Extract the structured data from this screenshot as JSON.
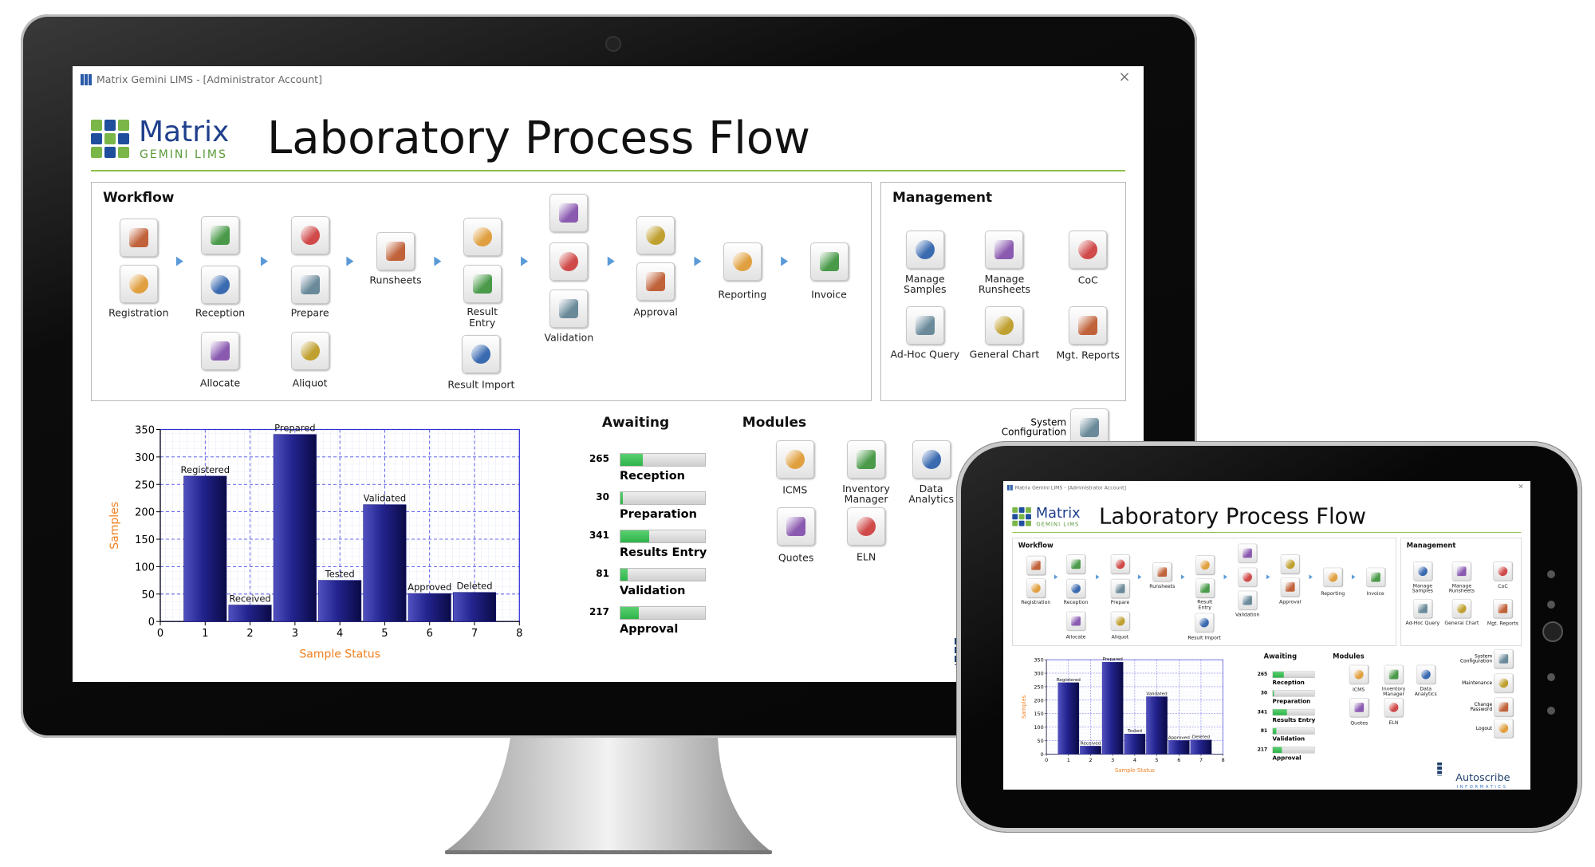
{
  "window": {
    "title": "Matrix Gemini LIMS - [Administrator Account]"
  },
  "logo": {
    "name": "Matrix",
    "subtitle": "GEMINI LIMS"
  },
  "header": {
    "title": "Laboratory Process Flow"
  },
  "workflow": {
    "title": "Workflow",
    "items": [
      "Registration",
      "Reception",
      "Allocate",
      "Prepare",
      "Aliquot",
      "Runsheets",
      "Result Entry",
      "Result Import",
      "Validation",
      "Approval",
      "Reporting",
      "Invoice"
    ]
  },
  "management": {
    "title": "Management",
    "items": [
      "Manage Samples",
      "Manage Runsheets",
      "CoC",
      "Ad-Hoc Query",
      "General Chart",
      "Mgt. Reports"
    ]
  },
  "chart_data": {
    "type": "bar",
    "x": [
      1,
      2,
      3,
      4,
      5,
      6,
      7
    ],
    "values": [
      265,
      30,
      341,
      75,
      213,
      51,
      53
    ],
    "annotations": [
      "Registered",
      "Received",
      "Prepared",
      "Tested",
      "Validated",
      "Approved",
      "Deleted"
    ],
    "color": "#1a1a80",
    "xlim": [
      0,
      8
    ],
    "xticks": [
      0,
      1,
      2,
      3,
      4,
      5,
      6,
      7,
      8
    ],
    "ylim": [
      0,
      350
    ],
    "yticks": [
      0,
      50,
      100,
      150,
      200,
      250,
      300,
      350
    ],
    "xlabel": "Sample Status",
    "ylabel": "Samples",
    "grid": true
  },
  "awaiting": {
    "title": "Awaiting",
    "xlim": [
      0,
      1000
    ],
    "color": "#2db34a",
    "items": [
      {
        "value": 265,
        "label": "Reception"
      },
      {
        "value": 30,
        "label": "Preparation"
      },
      {
        "value": 341,
        "label": "Results Entry"
      },
      {
        "value": 81,
        "label": "Validation"
      },
      {
        "value": 217,
        "label": "Approval"
      }
    ]
  },
  "modules": {
    "title": "Modules",
    "items": [
      "ICMS",
      "Inventory Manager",
      "Data Analytics",
      "Quotes",
      "ELN"
    ]
  },
  "system": {
    "items": [
      "System Configuration",
      "Maintenance",
      "Change Password",
      "Logout"
    ]
  },
  "footer_logo": {
    "name": "Autoscribe",
    "subtitle": "INFORMATICS"
  }
}
